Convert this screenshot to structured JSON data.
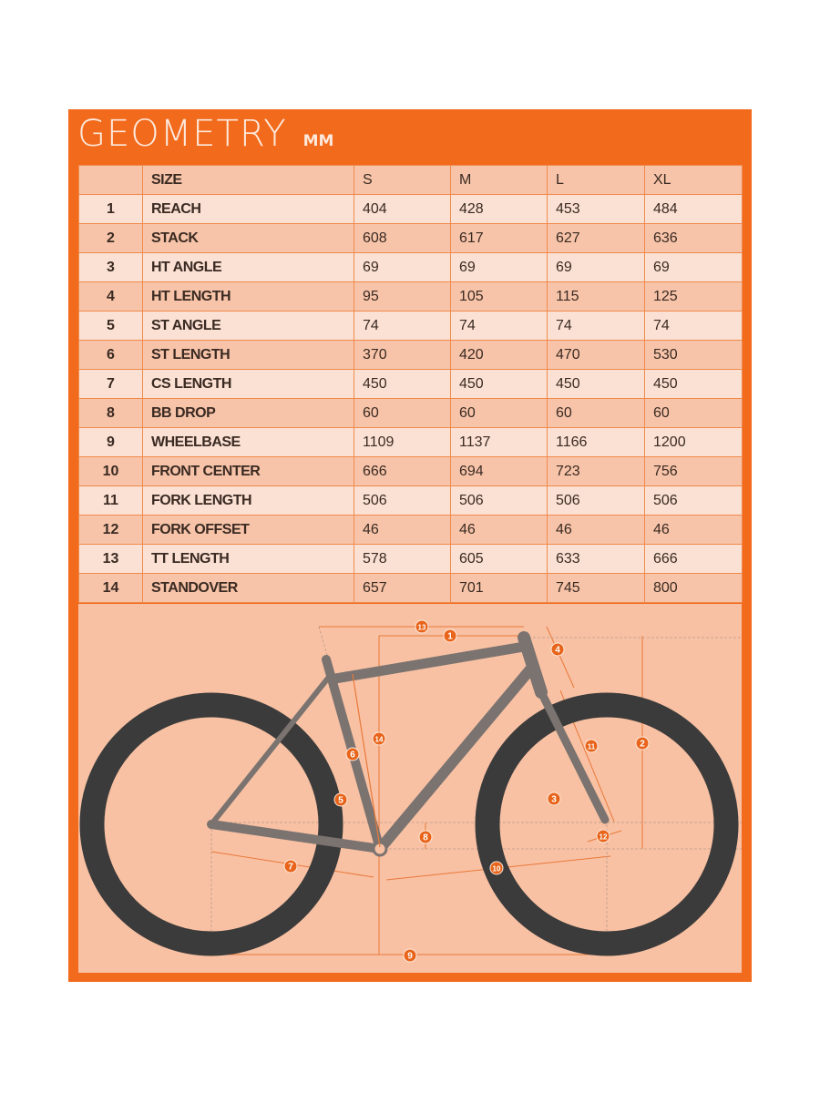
{
  "title": "GEOMETRY",
  "unit": "MM",
  "colors": {
    "accent": "#f26a1c",
    "row_light": "#fbe1d4",
    "row_dark": "#f7c4a9",
    "frame": "#7a7370",
    "tire": "#3b3b3b"
  },
  "table": {
    "header": [
      "",
      "SIZE",
      "S",
      "M",
      "L",
      "XL"
    ],
    "rows": [
      [
        "1",
        "REACH",
        "404",
        "428",
        "453",
        "484"
      ],
      [
        "2",
        "STACK",
        "608",
        "617",
        "627",
        "636"
      ],
      [
        "3",
        "HT ANGLE",
        "69",
        "69",
        "69",
        "69"
      ],
      [
        "4",
        "HT LENGTH",
        "95",
        "105",
        "115",
        "125"
      ],
      [
        "5",
        "ST ANGLE",
        "74",
        "74",
        "74",
        "74"
      ],
      [
        "6",
        "ST LENGTH",
        "370",
        "420",
        "470",
        "530"
      ],
      [
        "7",
        "CS LENGTH",
        "450",
        "450",
        "450",
        "450"
      ],
      [
        "8",
        "BB DROP",
        "60",
        "60",
        "60",
        "60"
      ],
      [
        "9",
        "WHEELBASE",
        "1109",
        "1137",
        "1166",
        "1200"
      ],
      [
        "10",
        "FRONT CENTER",
        "666",
        "694",
        "723",
        "756"
      ],
      [
        "11",
        "FORK LENGTH",
        "506",
        "506",
        "506",
        "506"
      ],
      [
        "12",
        "FORK OFFSET",
        "46",
        "46",
        "46",
        "46"
      ],
      [
        "13",
        "TT LENGTH",
        "578",
        "605",
        "633",
        "666"
      ],
      [
        "14",
        "STANDOVER",
        "657",
        "701",
        "745",
        "800"
      ]
    ]
  },
  "diagram": {
    "markers": [
      "13",
      "1",
      "4",
      "2",
      "14",
      "6",
      "11",
      "5",
      "3",
      "8",
      "12",
      "7",
      "10",
      "9"
    ]
  }
}
